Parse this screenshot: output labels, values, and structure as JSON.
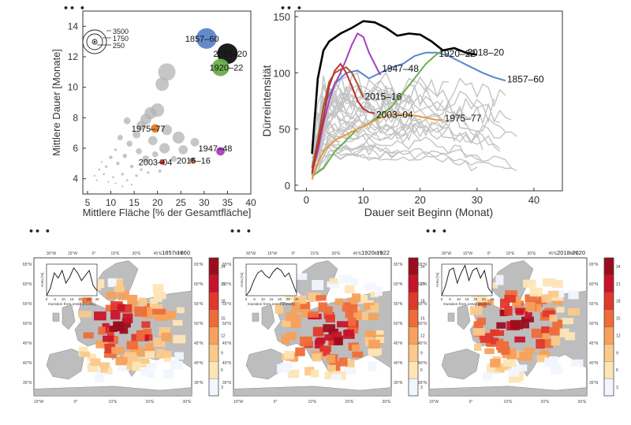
{
  "panel_marker": "•• •",
  "chart_data": [
    {
      "type": "scatter",
      "xlabel": "Mittlere Fläche [% der Gesamtfläche]",
      "ylabel": "Mittlere Dauer [Monate]",
      "xlim": [
        4,
        40
      ],
      "ylim": [
        3,
        15
      ],
      "x_ticks": [
        5,
        10,
        15,
        20,
        25,
        30,
        35,
        40
      ],
      "y_ticks": [
        4,
        6,
        8,
        10,
        12,
        14
      ],
      "size_legend": [
        "3500",
        "1750",
        "250"
      ],
      "highlighted": [
        {
          "label": "1857–60",
          "x": 30.5,
          "y": 13.2,
          "size": 3500,
          "color": "#5b85c9"
        },
        {
          "label": "2018–20",
          "x": 35.0,
          "y": 12.2,
          "size": 3500,
          "color": "#111111"
        },
        {
          "label": "1920–22",
          "x": 33.5,
          "y": 11.3,
          "size": 2500,
          "color": "#6ab04c"
        },
        {
          "label": "1975–77",
          "x": 19.5,
          "y": 7.3,
          "size": 600,
          "color": "#e07b2a"
        },
        {
          "label": "1947–48",
          "x": 33.5,
          "y": 5.8,
          "size": 600,
          "color": "#a63fc0"
        },
        {
          "label": "2015–16",
          "x": 27.5,
          "y": 5.2,
          "size": 250,
          "color": "#a4582a"
        },
        {
          "label": "2003–04",
          "x": 21.0,
          "y": 5.1,
          "size": 250,
          "color": "#c0302b"
        }
      ],
      "other_events": [
        {
          "x": 22.0,
          "y": 11.0,
          "size": 2500
        },
        {
          "x": 21.0,
          "y": 10.2,
          "size": 1500
        },
        {
          "x": 20.0,
          "y": 8.5,
          "size": 1500
        },
        {
          "x": 18.5,
          "y": 8.3,
          "size": 1200
        },
        {
          "x": 17.5,
          "y": 7.9,
          "size": 1000
        },
        {
          "x": 16.5,
          "y": 7.5,
          "size": 700
        },
        {
          "x": 22.0,
          "y": 7.2,
          "size": 900
        },
        {
          "x": 24.5,
          "y": 6.7,
          "size": 1200
        },
        {
          "x": 19.0,
          "y": 6.5,
          "size": 700
        },
        {
          "x": 21.5,
          "y": 6.0,
          "size": 900
        },
        {
          "x": 25.5,
          "y": 5.9,
          "size": 700
        },
        {
          "x": 28.0,
          "y": 6.4,
          "size": 600
        },
        {
          "x": 15.5,
          "y": 6.9,
          "size": 500
        },
        {
          "x": 13.5,
          "y": 7.8,
          "size": 400
        },
        {
          "x": 14.0,
          "y": 6.3,
          "size": 300
        },
        {
          "x": 16.0,
          "y": 5.8,
          "size": 300
        },
        {
          "x": 12.0,
          "y": 6.7,
          "size": 250
        },
        {
          "x": 17.5,
          "y": 5.3,
          "size": 400
        },
        {
          "x": 19.5,
          "y": 5.6,
          "size": 300
        },
        {
          "x": 23.5,
          "y": 5.3,
          "size": 300
        },
        {
          "x": 13.0,
          "y": 5.5,
          "size": 150
        },
        {
          "x": 11.5,
          "y": 5.0,
          "size": 100
        },
        {
          "x": 10.0,
          "y": 5.4,
          "size": 100
        },
        {
          "x": 9.0,
          "y": 4.8,
          "size": 60
        },
        {
          "x": 8.5,
          "y": 4.3,
          "size": 40
        },
        {
          "x": 7.5,
          "y": 4.6,
          "size": 40
        },
        {
          "x": 12.5,
          "y": 4.3,
          "size": 60
        },
        {
          "x": 14.5,
          "y": 4.8,
          "size": 100
        },
        {
          "x": 15.5,
          "y": 4.2,
          "size": 60
        },
        {
          "x": 10.5,
          "y": 4.1,
          "size": 40
        },
        {
          "x": 9.5,
          "y": 3.8,
          "size": 30
        },
        {
          "x": 11.0,
          "y": 3.7,
          "size": 30
        },
        {
          "x": 13.5,
          "y": 3.9,
          "size": 40
        },
        {
          "x": 16.5,
          "y": 4.6,
          "size": 60
        },
        {
          "x": 18.0,
          "y": 4.4,
          "size": 60
        },
        {
          "x": 20.5,
          "y": 4.5,
          "size": 80
        },
        {
          "x": 6.5,
          "y": 4.2,
          "size": 20
        },
        {
          "x": 7.0,
          "y": 3.9,
          "size": 20
        },
        {
          "x": 8.0,
          "y": 5.1,
          "size": 30
        },
        {
          "x": 11.0,
          "y": 5.9,
          "size": 60
        },
        {
          "x": 12.5,
          "y": 3.5,
          "size": 30
        },
        {
          "x": 14.5,
          "y": 3.6,
          "size": 30
        }
      ]
    },
    {
      "type": "line",
      "xlabel": "Dauer seit Beginn (Monat)",
      "ylabel": "Dürreintensität",
      "xlim": [
        -2,
        45
      ],
      "ylim": [
        -5,
        155
      ],
      "x_ticks": [
        0,
        10,
        20,
        30,
        40
      ],
      "y_ticks": [
        0,
        50,
        100,
        150
      ],
      "series": [
        {
          "name": "2018–20",
          "color": "#000000",
          "x": [
            1,
            2,
            3,
            4,
            6,
            8,
            10,
            12,
            14,
            16,
            18,
            20,
            22,
            24,
            26,
            28,
            30
          ],
          "y": [
            28,
            95,
            120,
            128,
            135,
            140,
            146,
            145,
            140,
            133,
            135,
            134,
            128,
            120,
            122,
            118,
            116
          ],
          "label_at": 28,
          "label_dy": 4
        },
        {
          "name": "1857–60",
          "color": "#5b85c9",
          "x": [
            1,
            2,
            3,
            5,
            7,
            9,
            11,
            13,
            15,
            17,
            19,
            21,
            23,
            25,
            27,
            29,
            31,
            33,
            35
          ],
          "y": [
            10,
            40,
            70,
            90,
            100,
            102,
            95,
            100,
            105,
            108,
            115,
            118,
            118,
            115,
            110,
            105,
            100,
            96,
            93
          ],
          "label_at": 35,
          "label_dy": 2
        },
        {
          "name": "1920–22",
          "color": "#6ab04c",
          "x": [
            1,
            3,
            5,
            7,
            9,
            11,
            13,
            15,
            17,
            19,
            21,
            23,
            24
          ],
          "y": [
            8,
            15,
            30,
            40,
            50,
            55,
            62,
            70,
            82,
            95,
            108,
            117,
            119
          ],
          "label_at": 23,
          "label_dy": 4
        },
        {
          "name": "1947–48",
          "color": "#a63fc0",
          "x": [
            1,
            2,
            3,
            4,
            5,
            6,
            7,
            8,
            9,
            10,
            11,
            12,
            13
          ],
          "y": [
            12,
            30,
            55,
            75,
            90,
            100,
            112,
            125,
            135,
            132,
            118,
            108,
            98
          ],
          "label_at": 13,
          "label_dy": -4
        },
        {
          "name": "2015–16",
          "color": "#a4582a",
          "x": [
            1,
            2,
            3,
            4,
            5,
            6,
            7,
            8,
            9,
            10
          ],
          "y": [
            15,
            40,
            70,
            92,
            100,
            103,
            105,
            100,
            90,
            78
          ],
          "label_at": 10,
          "label_dy": 3
        },
        {
          "name": "2003–04",
          "color": "#c0302b",
          "x": [
            1,
            2,
            3,
            4,
            5,
            6,
            7,
            8,
            9,
            10,
            11,
            12
          ],
          "y": [
            10,
            35,
            60,
            88,
            102,
            108,
            100,
            88,
            75,
            68,
            65,
            64
          ],
          "label_at": 12,
          "label_dy": 6
        },
        {
          "name": "1975–77",
          "color": "#e49a3a",
          "x": [
            1,
            2,
            3,
            5,
            7,
            9,
            11,
            13,
            15,
            17,
            19,
            21,
            23,
            24
          ],
          "y": [
            5,
            20,
            30,
            40,
            45,
            50,
            55,
            60,
            63,
            63,
            62,
            60,
            58,
            58
          ],
          "label_at": 24,
          "label_dy": 2
        }
      ],
      "background_series_count": 40
    },
    {
      "type": "heatmap",
      "maps": [
        {
          "title": "1857-1860",
          "inset": [
            0,
            6,
            18,
            14,
            20,
            10,
            15,
            22,
            18,
            12,
            16,
            20,
            8,
            4
          ]
        },
        {
          "title": "1920-1922",
          "inset": [
            0,
            4,
            12,
            18,
            20,
            16,
            14,
            19,
            22,
            20,
            15,
            18,
            10,
            2
          ]
        },
        {
          "title": "2018-2020",
          "inset": [
            0,
            8,
            20,
            22,
            10,
            18,
            24,
            12,
            20,
            22,
            14,
            20,
            6,
            2
          ]
        }
      ],
      "inset_xlabel": "Duration from onset [month]",
      "inset_ylabel": "Area [%]",
      "inset_x_ticks": [
        "0",
        "5",
        "10",
        "15",
        "20",
        "25",
        "30"
      ],
      "top_lon_labels": [
        "30°W",
        "15°W",
        "0°",
        "15°E",
        "30°E",
        "45°E",
        "60°E"
      ],
      "bottom_lon_labels": [
        "10°W",
        "0°",
        "10°E",
        "20°E",
        "30°E"
      ],
      "left_lat_labels": [
        "65°N",
        "60°N",
        "55°N",
        "50°N",
        "45°N",
        "40°N",
        "35°N"
      ],
      "right_lat_labels": [
        "65°N",
        "60°N",
        "55°N",
        "50°N",
        "45°N",
        "40°N",
        "35°N"
      ],
      "colorbar_ticks": [
        "24",
        "21",
        "18",
        "15",
        "12",
        "9",
        "6",
        "3"
      ],
      "colorbar_colors": [
        "#9b0d1e",
        "#c8142a",
        "#e0382b",
        "#ef6b3a",
        "#f7a15a",
        "#fbc98a",
        "#fde5b6",
        "#f1f6ff"
      ]
    }
  ]
}
